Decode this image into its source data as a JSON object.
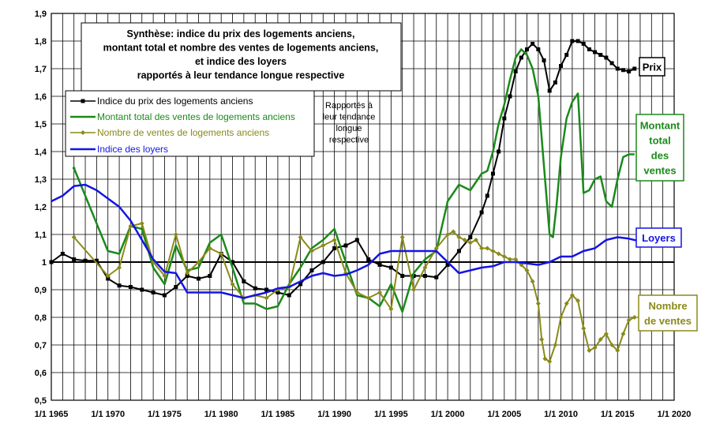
{
  "chart_data": {
    "type": "line",
    "title": "Synthèse: indice du prix des logements anciens, montant total et nombre des ventes de logements anciens, et indice des loyers rapportés à leur tendance longue respective",
    "title_lines": [
      "Synthèse: indice du prix des logements anciens,",
      "montant total et nombre des ventes de logements anciens,",
      "et indice des loyers",
      "rapportés à leur tendance longue respective"
    ],
    "note_lines": [
      "Rapportés à",
      "leur tendance",
      "longue",
      "respective"
    ],
    "xlabel": "",
    "ylabel": "",
    "xlim": [
      1965,
      2020
    ],
    "ylim": [
      0.5,
      1.9
    ],
    "x_ticks": [
      1965,
      1970,
      1975,
      1980,
      1985,
      1990,
      1995,
      2000,
      2005,
      2010,
      2015,
      2020
    ],
    "x_tick_labels": [
      "1/1 1965",
      "1/1 1970",
      "1/1 1975",
      "1/1 1980",
      "1/1 1985",
      "1/1 1990",
      "1/1 1995",
      "1/1 2000",
      "1/1 2005",
      "1/1 2010",
      "1/1 2015",
      "1/1 2020"
    ],
    "y_ticks": [
      0.5,
      0.6,
      0.7,
      0.8,
      0.9,
      1.0,
      1.1,
      1.2,
      1.3,
      1.4,
      1.5,
      1.6,
      1.7,
      1.8,
      1.9
    ],
    "y_tick_labels": [
      "0,5",
      "0,6",
      "0,7",
      "0,8",
      "0,9",
      "1",
      "1,1",
      "1,2",
      "1,3",
      "1,4",
      "1,5",
      "1,6",
      "1,7",
      "1,8",
      "1,9"
    ],
    "reference_line": 1.0,
    "grid": true,
    "legend_position": "top-left",
    "series": [
      {
        "name": "Indice du prix des logements anciens",
        "color": "#000000",
        "marker": "square",
        "side_label": [
          "Prix"
        ],
        "x": [
          1965,
          1966,
          1967,
          1968,
          1969,
          1970,
          1971,
          1972,
          1973,
          1974,
          1975,
          1976,
          1977,
          1978,
          1979,
          1980,
          1981,
          1982,
          1983,
          1984,
          1985,
          1986,
          1987,
          1988,
          1989,
          1990,
          1991,
          1992,
          1993,
          1994,
          1995,
          1996,
          1997,
          1998,
          1999,
          2000,
          2001,
          2002,
          2003,
          2003.5,
          2004,
          2004.5,
          2005,
          2005.5,
          2006,
          2006.5,
          2007,
          2007.5,
          2008,
          2008.5,
          2009,
          2009.5,
          2010,
          2010.5,
          2011,
          2011.5,
          2012,
          2012.5,
          2013,
          2013.5,
          2014,
          2014.5,
          2015,
          2015.5,
          2016,
          2016.5
        ],
        "values": [
          1.0,
          1.03,
          1.01,
          1.005,
          1.005,
          0.94,
          0.915,
          0.91,
          0.9,
          0.89,
          0.88,
          0.91,
          0.95,
          0.94,
          0.95,
          1.03,
          1.0,
          0.93,
          0.905,
          0.9,
          0.89,
          0.88,
          0.92,
          0.97,
          1.0,
          1.05,
          1.06,
          1.08,
          1.01,
          0.99,
          0.98,
          0.95,
          0.95,
          0.95,
          0.945,
          0.99,
          1.04,
          1.09,
          1.18,
          1.24,
          1.32,
          1.4,
          1.52,
          1.6,
          1.69,
          1.74,
          1.77,
          1.79,
          1.77,
          1.73,
          1.62,
          1.65,
          1.71,
          1.75,
          1.8,
          1.8,
          1.79,
          1.77,
          1.76,
          1.75,
          1.74,
          1.72,
          1.7,
          1.695,
          1.69,
          1.7
        ]
      },
      {
        "name": "Montant total des ventes de logements anciens",
        "color": "#1a8a1a",
        "marker": "line",
        "side_label": [
          "Montant",
          "total",
          "des",
          "ventes"
        ],
        "x": [
          1967,
          1970,
          1971,
          1972,
          1973,
          1974,
          1975,
          1976,
          1977,
          1978,
          1979,
          1980,
          1981,
          1982,
          1983,
          1984,
          1985,
          1986,
          1987,
          1988,
          1989,
          1990,
          1991,
          1992,
          1993,
          1994,
          1995,
          1996,
          1997,
          1998,
          1999,
          2000,
          2001,
          2002,
          2002.5,
          2003,
          2003.5,
          2004,
          2004.5,
          2005,
          2005.5,
          2006,
          2006.5,
          2007,
          2007.5,
          2008,
          2008.5,
          2009,
          2009.3,
          2009.6,
          2010,
          2010.5,
          2011,
          2011.5,
          2012,
          2012.5,
          2013,
          2013.5,
          2014,
          2014.5,
          2015,
          2015.5,
          2016,
          2016.5
        ],
        "values": [
          1.34,
          1.04,
          1.03,
          1.13,
          1.12,
          0.98,
          0.92,
          1.06,
          0.97,
          0.98,
          1.07,
          1.1,
          0.98,
          0.85,
          0.85,
          0.83,
          0.84,
          0.92,
          0.98,
          1.05,
          1.08,
          1.12,
          1.0,
          0.88,
          0.87,
          0.84,
          0.92,
          0.82,
          0.96,
          1.01,
          1.04,
          1.22,
          1.28,
          1.26,
          1.29,
          1.32,
          1.33,
          1.4,
          1.5,
          1.57,
          1.66,
          1.74,
          1.77,
          1.75,
          1.7,
          1.6,
          1.35,
          1.1,
          1.09,
          1.2,
          1.38,
          1.52,
          1.58,
          1.61,
          1.25,
          1.26,
          1.3,
          1.31,
          1.22,
          1.2,
          1.3,
          1.38,
          1.39,
          1.39
        ]
      },
      {
        "name": "Nombre de ventes de logements anciens",
        "color": "#8a8a1a",
        "marker": "diamond",
        "side_label": [
          "Nombre",
          "de ventes"
        ],
        "x": [
          1967,
          1970,
          1971,
          1972,
          1973,
          1974,
          1975,
          1976,
          1977,
          1978,
          1979,
          1980,
          1981,
          1982,
          1983,
          1984,
          1985,
          1986,
          1987,
          1988,
          1989,
          1990,
          1991,
          1992,
          1993,
          1994,
          1995,
          1996,
          1997,
          1998,
          1999,
          2000,
          2000.5,
          2001,
          2001.5,
          2002,
          2002.5,
          2003,
          2003.5,
          2004,
          2004.5,
          2005,
          2005.5,
          2006,
          2006.5,
          2007,
          2007.5,
          2008,
          2008.3,
          2008.6,
          2009,
          2009.5,
          2010,
          2010.5,
          2011,
          2011.5,
          2012,
          2012.5,
          2013,
          2013.5,
          2014,
          2014.5,
          2015,
          2015.5,
          2016,
          2016.5
        ],
        "values": [
          1.09,
          0.95,
          0.98,
          1.13,
          1.14,
          1.0,
          0.95,
          1.1,
          0.96,
          1.0,
          1.05,
          1.03,
          0.92,
          0.87,
          0.88,
          0.87,
          0.9,
          0.91,
          1.09,
          1.04,
          1.06,
          1.08,
          0.96,
          0.89,
          0.87,
          0.89,
          0.83,
          1.09,
          0.9,
          0.98,
          1.05,
          1.1,
          1.11,
          1.09,
          1.08,
          1.07,
          1.08,
          1.05,
          1.05,
          1.04,
          1.03,
          1.02,
          1.01,
          1.01,
          0.99,
          0.97,
          0.93,
          0.85,
          0.72,
          0.65,
          0.64,
          0.7,
          0.8,
          0.85,
          0.88,
          0.86,
          0.76,
          0.68,
          0.69,
          0.72,
          0.74,
          0.7,
          0.68,
          0.74,
          0.79,
          0.8
        ]
      },
      {
        "name": "Indice des loyers",
        "color": "#1414e6",
        "marker": "line",
        "side_label": [
          "Loyers"
        ],
        "x": [
          1965,
          1966,
          1967,
          1968,
          1969,
          1970,
          1971,
          1972,
          1973,
          1974,
          1975,
          1976,
          1977,
          1978,
          1979,
          1980,
          1981,
          1982,
          1983,
          1984,
          1985,
          1986,
          1987,
          1988,
          1989,
          1990,
          1991,
          1992,
          1993,
          1994,
          1995,
          1996,
          1997,
          1998,
          1999,
          2000,
          2001,
          2002,
          2003,
          2004,
          2005,
          2006,
          2007,
          2008,
          2009,
          2010,
          2011,
          2012,
          2013,
          2014,
          2015,
          2016,
          2017
        ],
        "values": [
          1.22,
          1.24,
          1.275,
          1.28,
          1.26,
          1.23,
          1.2,
          1.15,
          1.08,
          1.01,
          0.965,
          0.96,
          0.89,
          0.89,
          0.89,
          0.89,
          0.88,
          0.87,
          0.88,
          0.89,
          0.905,
          0.91,
          0.93,
          0.95,
          0.96,
          0.95,
          0.955,
          0.97,
          0.99,
          1.03,
          1.04,
          1.04,
          1.04,
          1.04,
          1.04,
          1.0,
          0.96,
          0.97,
          0.98,
          0.985,
          1.0,
          1.0,
          0.995,
          0.99,
          1.0,
          1.02,
          1.02,
          1.04,
          1.05,
          1.08,
          1.09,
          1.085,
          1.075
        ]
      }
    ]
  }
}
